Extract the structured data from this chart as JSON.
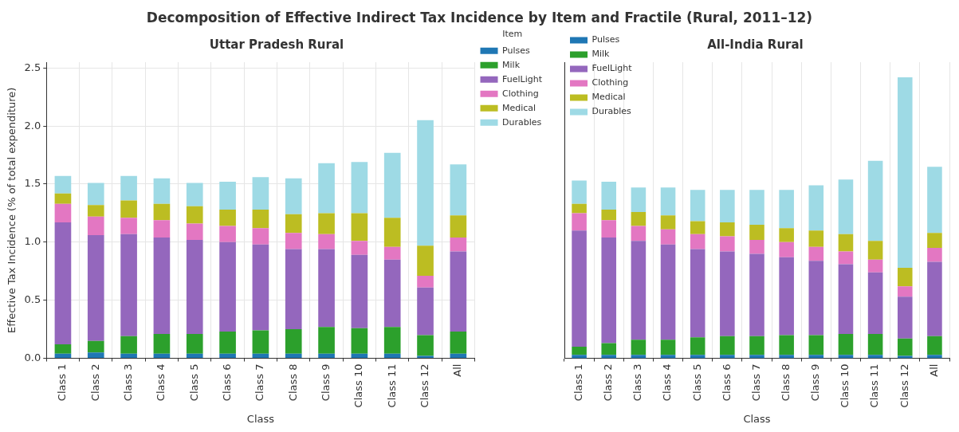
{
  "chart_data": [
    {
      "type": "bar",
      "annotations": [
        "Decomposition of Effective Indirect Tax Incidence by Item and Fractile (Rural, 2011–12)"
      ],
      "title": "Uttar Pradesh Rural",
      "xlabel": "Class",
      "ylabel": "Effective Tax Incidence (% of total expenditure)",
      "legend_title": "Item",
      "legend": "right",
      "stacked": true,
      "grid": true,
      "categories": [
        "Class 1",
        "Class 2",
        "Class 3",
        "Class 4",
        "Class 5",
        "Class 6",
        "Class 7",
        "Class 8",
        "Class 9",
        "Class 10",
        "Class 11",
        "Class 12",
        "All"
      ],
      "ylim": [
        0,
        2.55
      ],
      "yticks": [
        {
          "value": 0,
          "label": "0.0"
        },
        {
          "value": 0.5,
          "label": "0.5"
        },
        {
          "value": 1,
          "label": "1.0"
        },
        {
          "value": 1.5,
          "label": "1.5"
        },
        {
          "value": 2,
          "label": "2.0"
        },
        {
          "value": 2.5,
          "label": "2.5"
        }
      ],
      "series": [
        {
          "name": "Pulses",
          "color": "#1f77b4",
          "values": [
            0.04,
            0.05,
            0.04,
            0.04,
            0.04,
            0.04,
            0.04,
            0.04,
            0.04,
            0.04,
            0.04,
            0.02,
            0.04
          ]
        },
        {
          "name": "Milk",
          "color": "#2ca02c",
          "values": [
            0.08,
            0.1,
            0.15,
            0.17,
            0.17,
            0.19,
            0.2,
            0.21,
            0.23,
            0.22,
            0.23,
            0.18,
            0.19
          ]
        },
        {
          "name": "FuelLight",
          "color": "#9467bd",
          "values": [
            1.05,
            0.91,
            0.88,
            0.83,
            0.81,
            0.77,
            0.74,
            0.69,
            0.67,
            0.63,
            0.58,
            0.41,
            0.69
          ]
        },
        {
          "name": "Clothing",
          "color": "#e377c2",
          "values": [
            0.16,
            0.16,
            0.14,
            0.15,
            0.14,
            0.14,
            0.14,
            0.14,
            0.13,
            0.12,
            0.11,
            0.1,
            0.12
          ]
        },
        {
          "name": "Medical",
          "color": "#bcbd22",
          "values": [
            0.09,
            0.1,
            0.15,
            0.14,
            0.15,
            0.14,
            0.16,
            0.16,
            0.18,
            0.24,
            0.25,
            0.26,
            0.19
          ]
        },
        {
          "name": "Durables",
          "color": "#9edae5",
          "values": [
            0.15,
            0.19,
            0.21,
            0.22,
            0.2,
            0.24,
            0.28,
            0.31,
            0.43,
            0.44,
            0.56,
            1.08,
            0.44
          ]
        }
      ]
    },
    {
      "type": "bar",
      "title": "All-India Rural",
      "xlabel": "Class",
      "legend": "top left",
      "stacked": true,
      "grid": true,
      "tick_labels": "x",
      "categories": [
        "Class 1",
        "Class 2",
        "Class 3",
        "Class 4",
        "Class 5",
        "Class 6",
        "Class 7",
        "Class 8",
        "Class 9",
        "Class 10",
        "Class 11",
        "Class 12",
        "All"
      ],
      "ylim": [
        0,
        2.55
      ],
      "yticks": [
        {
          "value": 0,
          "label": null
        },
        {
          "value": 0.5,
          "label": null
        },
        {
          "value": 1,
          "label": null
        },
        {
          "value": 1.5,
          "label": null
        },
        {
          "value": 2,
          "label": null
        },
        {
          "value": 2.5,
          "label": null
        }
      ],
      "series": [
        {
          "name": "Pulses",
          "color": "#1f77b4",
          "values": [
            0.03,
            0.03,
            0.03,
            0.03,
            0.03,
            0.03,
            0.03,
            0.03,
            0.03,
            0.03,
            0.03,
            0.02,
            0.03
          ]
        },
        {
          "name": "Milk",
          "color": "#2ca02c",
          "values": [
            0.07,
            0.1,
            0.13,
            0.13,
            0.15,
            0.16,
            0.16,
            0.17,
            0.17,
            0.18,
            0.18,
            0.15,
            0.16
          ]
        },
        {
          "name": "FuelLight",
          "color": "#9467bd",
          "values": [
            1.0,
            0.91,
            0.85,
            0.82,
            0.76,
            0.73,
            0.71,
            0.67,
            0.64,
            0.6,
            0.53,
            0.36,
            0.64
          ]
        },
        {
          "name": "Clothing",
          "color": "#e377c2",
          "values": [
            0.15,
            0.15,
            0.13,
            0.13,
            0.13,
            0.13,
            0.12,
            0.13,
            0.12,
            0.11,
            0.11,
            0.09,
            0.12
          ]
        },
        {
          "name": "Medical",
          "color": "#bcbd22",
          "values": [
            0.08,
            0.09,
            0.12,
            0.12,
            0.11,
            0.12,
            0.13,
            0.12,
            0.14,
            0.15,
            0.16,
            0.16,
            0.13
          ]
        },
        {
          "name": "Durables",
          "color": "#9edae5",
          "values": [
            0.2,
            0.24,
            0.21,
            0.24,
            0.27,
            0.28,
            0.3,
            0.33,
            0.39,
            0.47,
            0.69,
            1.64,
            0.57
          ]
        }
      ]
    }
  ]
}
